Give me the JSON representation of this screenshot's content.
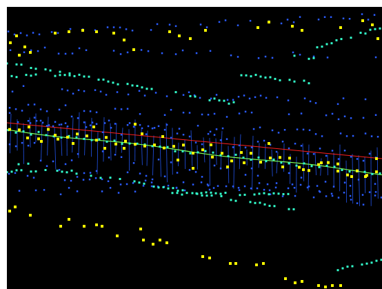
{
  "viewport": {
    "background": "#000000",
    "colors": {
      "yellow_points": "#ffff00",
      "cyan_points": "#33ffcc",
      "blue_points": "#2b5cff",
      "blue_lines": "#2255ee",
      "green_curve": "#7cff5a",
      "red_line": "#ff2020"
    },
    "icon": "3d-point-cloud-view"
  }
}
